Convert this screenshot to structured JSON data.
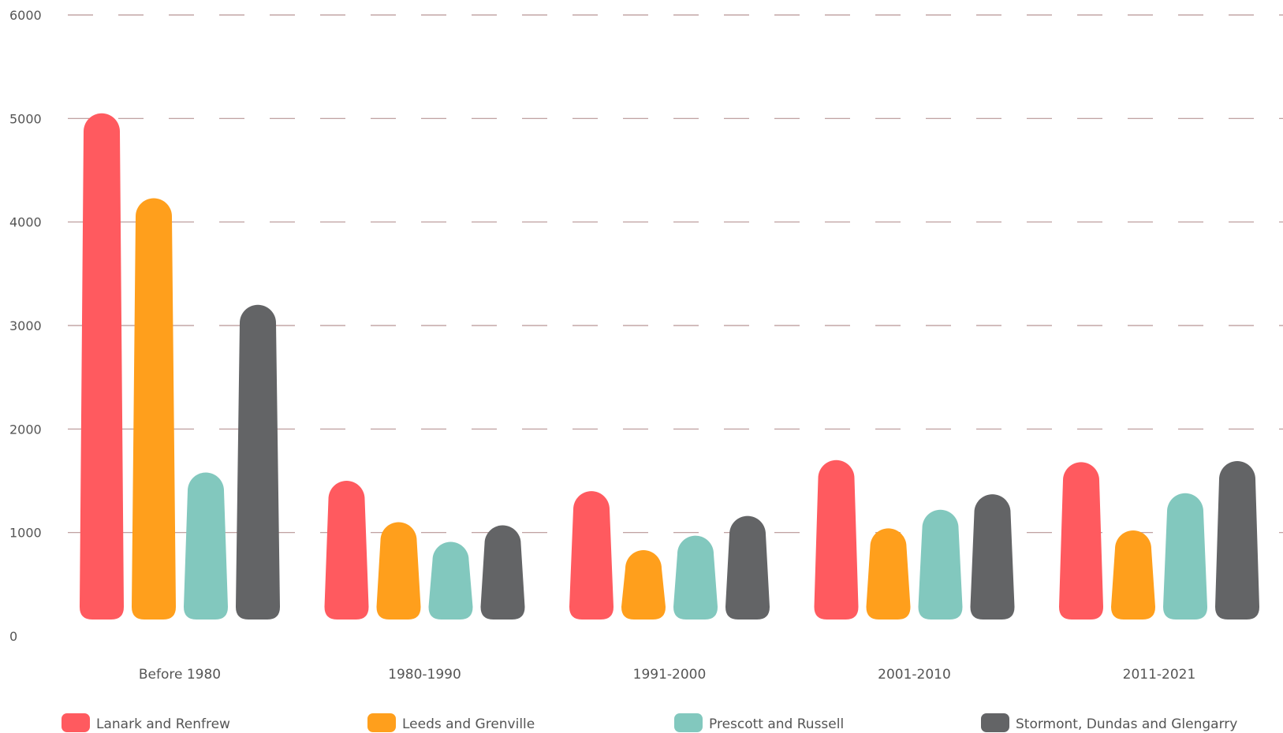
{
  "chart_data": {
    "type": "bar",
    "title": "",
    "xlabel": "",
    "ylabel": "",
    "ylim": [
      0,
      6000
    ],
    "yticks": [
      0,
      1000,
      2000,
      3000,
      4000,
      5000,
      6000
    ],
    "grid": "dashed horizontal",
    "legend_position": "bottom",
    "categories": [
      "Before 1980",
      "1980-1990",
      "1991-2000",
      "2001-2010",
      "2011-2021"
    ],
    "series": [
      {
        "name": "Lanark and Renfrew",
        "color": "#FF5A5F",
        "values": [
          5050,
          1500,
          1400,
          1700,
          1680
        ]
      },
      {
        "name": "Leeds and Grenville",
        "color": "#FF9F1C",
        "values": [
          4230,
          1100,
          830,
          1040,
          1020
        ]
      },
      {
        "name": "Prescott and Russell",
        "color": "#82C8BE",
        "values": [
          1580,
          910,
          970,
          1220,
          1380
        ]
      },
      {
        "name": "Stormont, Dundas and Glengarry",
        "color": "#636466",
        "values": [
          3200,
          1070,
          1160,
          1370,
          1690
        ]
      }
    ],
    "grid_color": "#B79595"
  }
}
